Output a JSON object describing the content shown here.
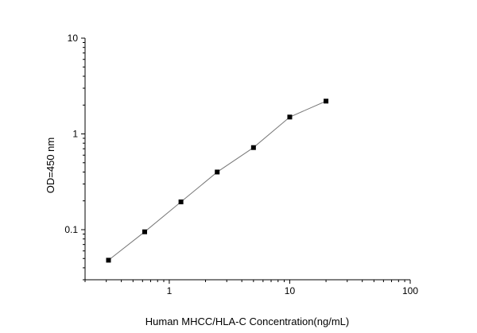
{
  "chart_data": {
    "type": "scatter",
    "title": "",
    "xlabel": "Human MHCC/HLA-C Concentration(ng/mL)",
    "ylabel": "OD=450 nm",
    "x_scale": "log",
    "y_scale": "log",
    "xlim": [
      0.2,
      100
    ],
    "ylim": [
      0.03,
      10
    ],
    "x_ticks": [
      {
        "value": 1,
        "label": "1"
      },
      {
        "value": 10,
        "label": "10"
      },
      {
        "value": 100,
        "label": "100"
      }
    ],
    "y_ticks": [
      {
        "value": 0.1,
        "label": "0.1"
      },
      {
        "value": 1,
        "label": "1"
      },
      {
        "value": 10,
        "label": "10"
      }
    ],
    "grid": false,
    "legend": "none",
    "series": [
      {
        "x": [
          0.313,
          0.625,
          1.25,
          2.5,
          5,
          10,
          20
        ],
        "y": [
          0.048,
          0.095,
          0.195,
          0.4,
          0.72,
          1.5,
          2.2
        ],
        "marker": "square",
        "line": true
      }
    ]
  },
  "colors": {
    "axis": "#000000",
    "marker": "#000000",
    "line": "#777777"
  }
}
